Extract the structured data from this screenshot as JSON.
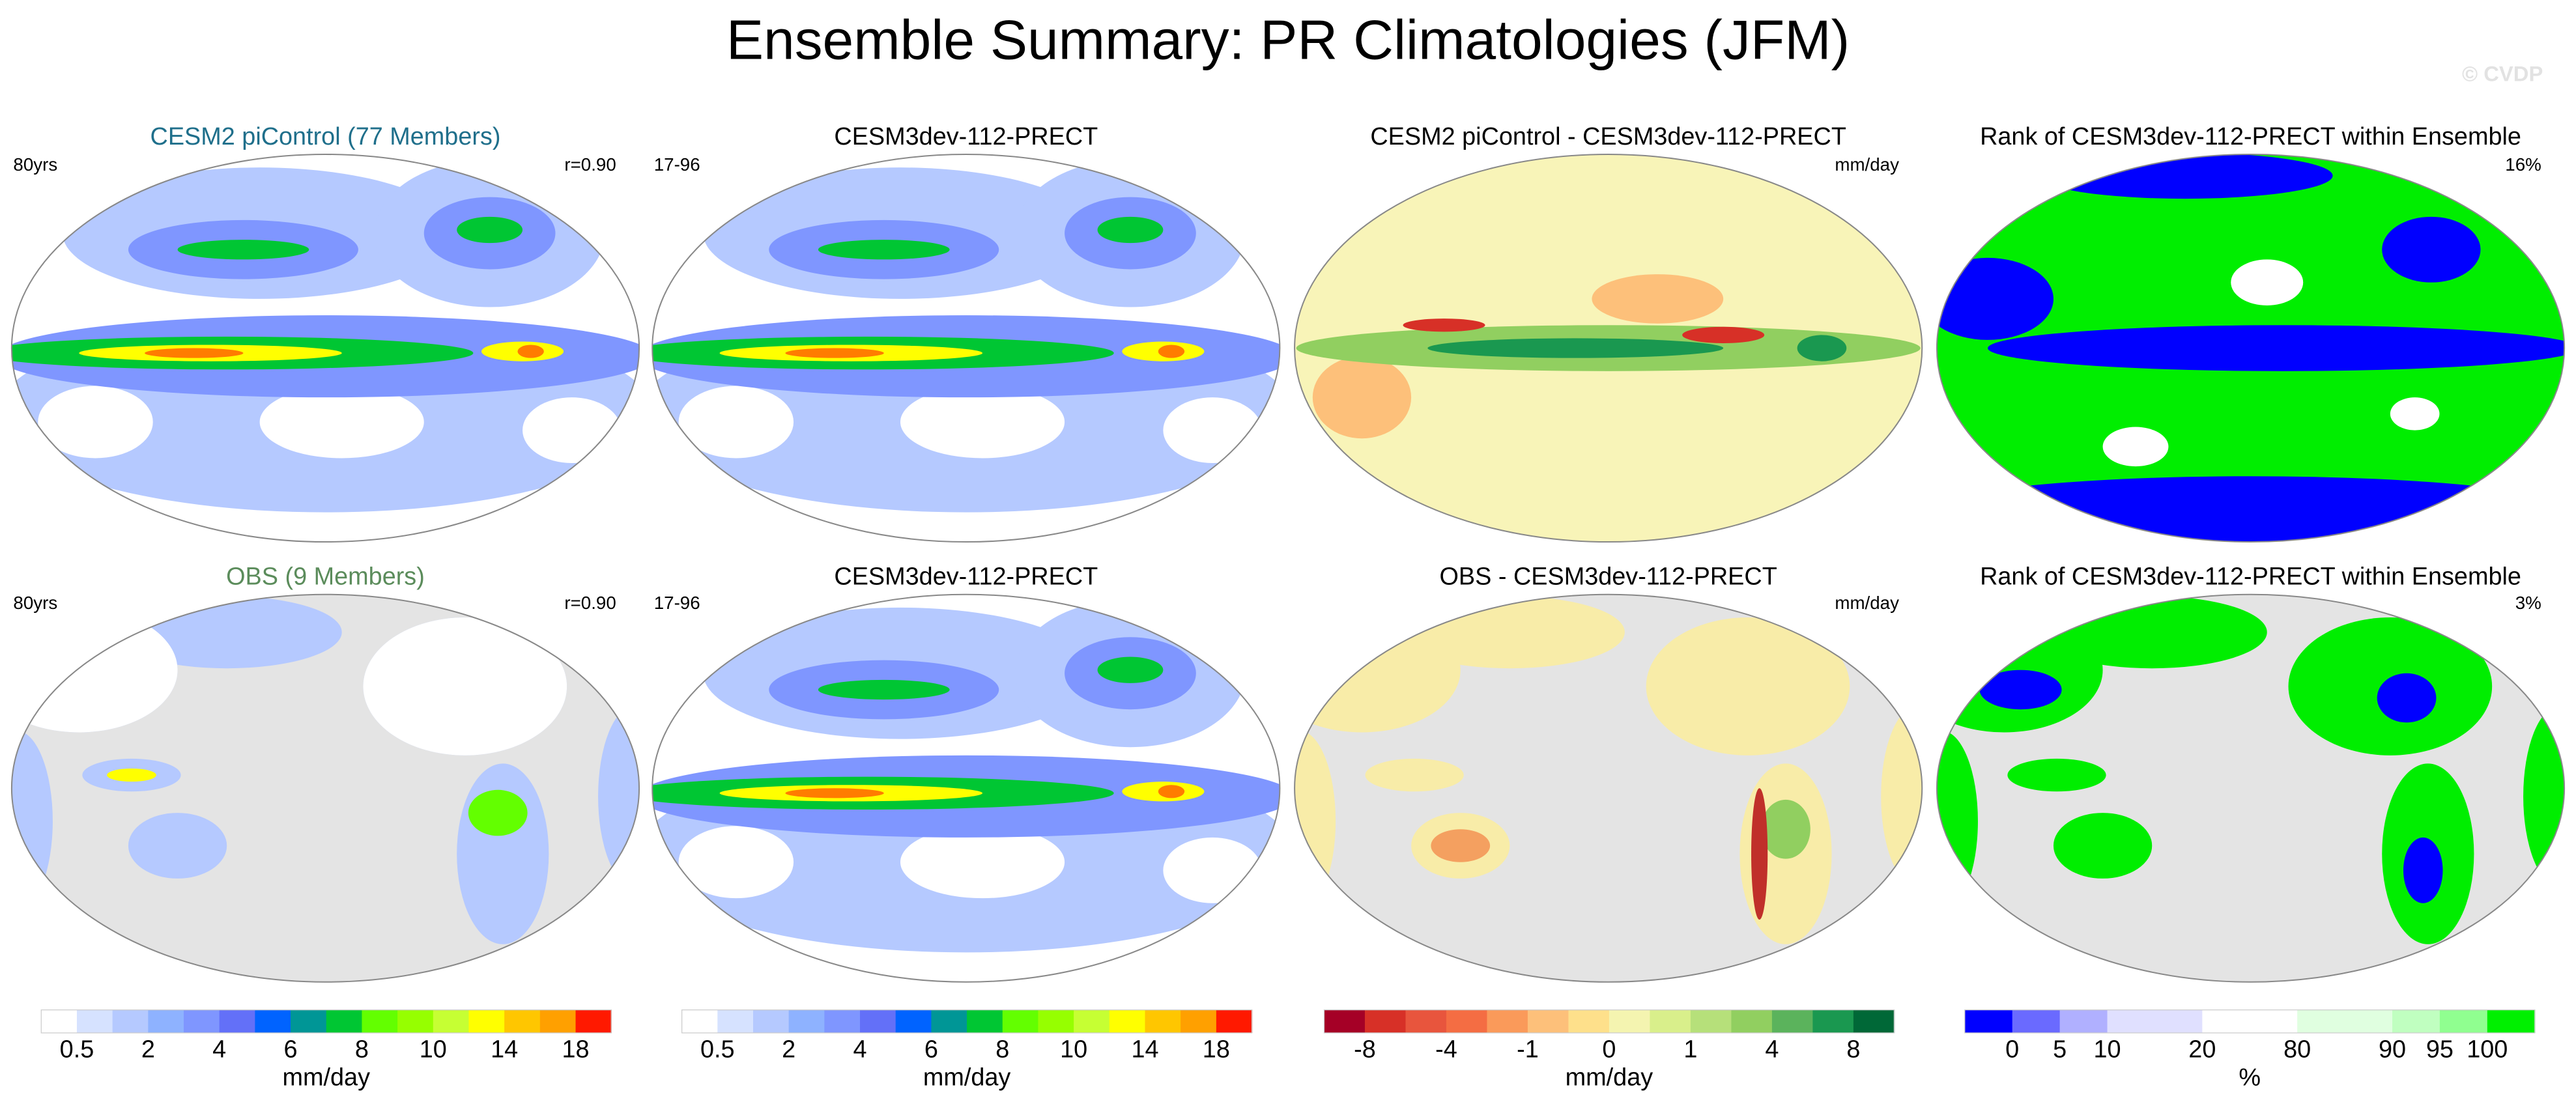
{
  "title": "Ensemble Summary: PR Climatologies (JFM)",
  "watermark": "© CVDP",
  "panels": [
    {
      "title": "CESM2 piControl (77 Members)",
      "title_color": "#1f6f8b",
      "left": "80yrs",
      "right": "r=0.90"
    },
    {
      "title": "CESM3dev-112-PRECT",
      "left": "17-96"
    },
    {
      "title": "CESM2 piControl - CESM3dev-112-PRECT",
      "right": "mm/day"
    },
    {
      "title": "Rank of CESM3dev-112-PRECT within Ensemble",
      "right": "16%"
    },
    {
      "title": "OBS (9 Members)",
      "title_color": "#5b8c5b",
      "left": "80yrs",
      "right": "r=0.90"
    },
    {
      "title": "CESM3dev-112-PRECT",
      "left": "17-96"
    },
    {
      "title": "OBS - CESM3dev-112-PRECT",
      "right": "mm/day"
    },
    {
      "title": "Rank of CESM3dev-112-PRECT within Ensemble",
      "right": "3%"
    }
  ],
  "colorbars": [
    {
      "colors": [
        "#ffffff",
        "#d6e2ff",
        "#b5c9ff",
        "#8eb2ff",
        "#7f96ff",
        "#6370f8",
        "#0063ff",
        "#009696",
        "#00c633",
        "#63ff00",
        "#96ff00",
        "#c6ff33",
        "#ffff00",
        "#ffc600",
        "#ffa000",
        "#ff1900"
      ],
      "labels": [
        "0.5",
        "2",
        "4",
        "6",
        "8",
        "10",
        "14",
        "18"
      ],
      "unit": "mm/day"
    },
    {
      "colors": [
        "#ffffff",
        "#d6e2ff",
        "#b5c9ff",
        "#8eb2ff",
        "#7f96ff",
        "#6370f8",
        "#0063ff",
        "#009696",
        "#00c633",
        "#63ff00",
        "#96ff00",
        "#c6ff33",
        "#ffff00",
        "#ffc600",
        "#ffa000",
        "#ff1900"
      ],
      "labels": [
        "0.5",
        "2",
        "4",
        "6",
        "8",
        "10",
        "14",
        "18"
      ],
      "unit": "mm/day"
    },
    {
      "colors": [
        "#a50026",
        "#d73027",
        "#e8553d",
        "#f46d43",
        "#fa9a5a",
        "#fdc07a",
        "#fee08b",
        "#f4f4b0",
        "#d9ef8b",
        "#b6e07a",
        "#91cf60",
        "#5bb35c",
        "#1a9850",
        "#006837"
      ],
      "labels": [
        "-8",
        "-4",
        "-1",
        "0",
        "1",
        "4",
        "8"
      ],
      "unit": "mm/day"
    },
    {
      "colors": [
        "#0000ff",
        "#6a6aff",
        "#b0b0ff",
        "#e0e0ff",
        "#e0e0ff",
        "#ffffff",
        "#ffffff",
        "#e0ffe0",
        "#e0ffe0",
        "#c0ffc0",
        "#90ff90",
        "#00f000"
      ],
      "labels": [
        "0",
        "5",
        "10",
        "20",
        "80",
        "90",
        "95",
        "100"
      ],
      "unit": "%"
    }
  ]
}
